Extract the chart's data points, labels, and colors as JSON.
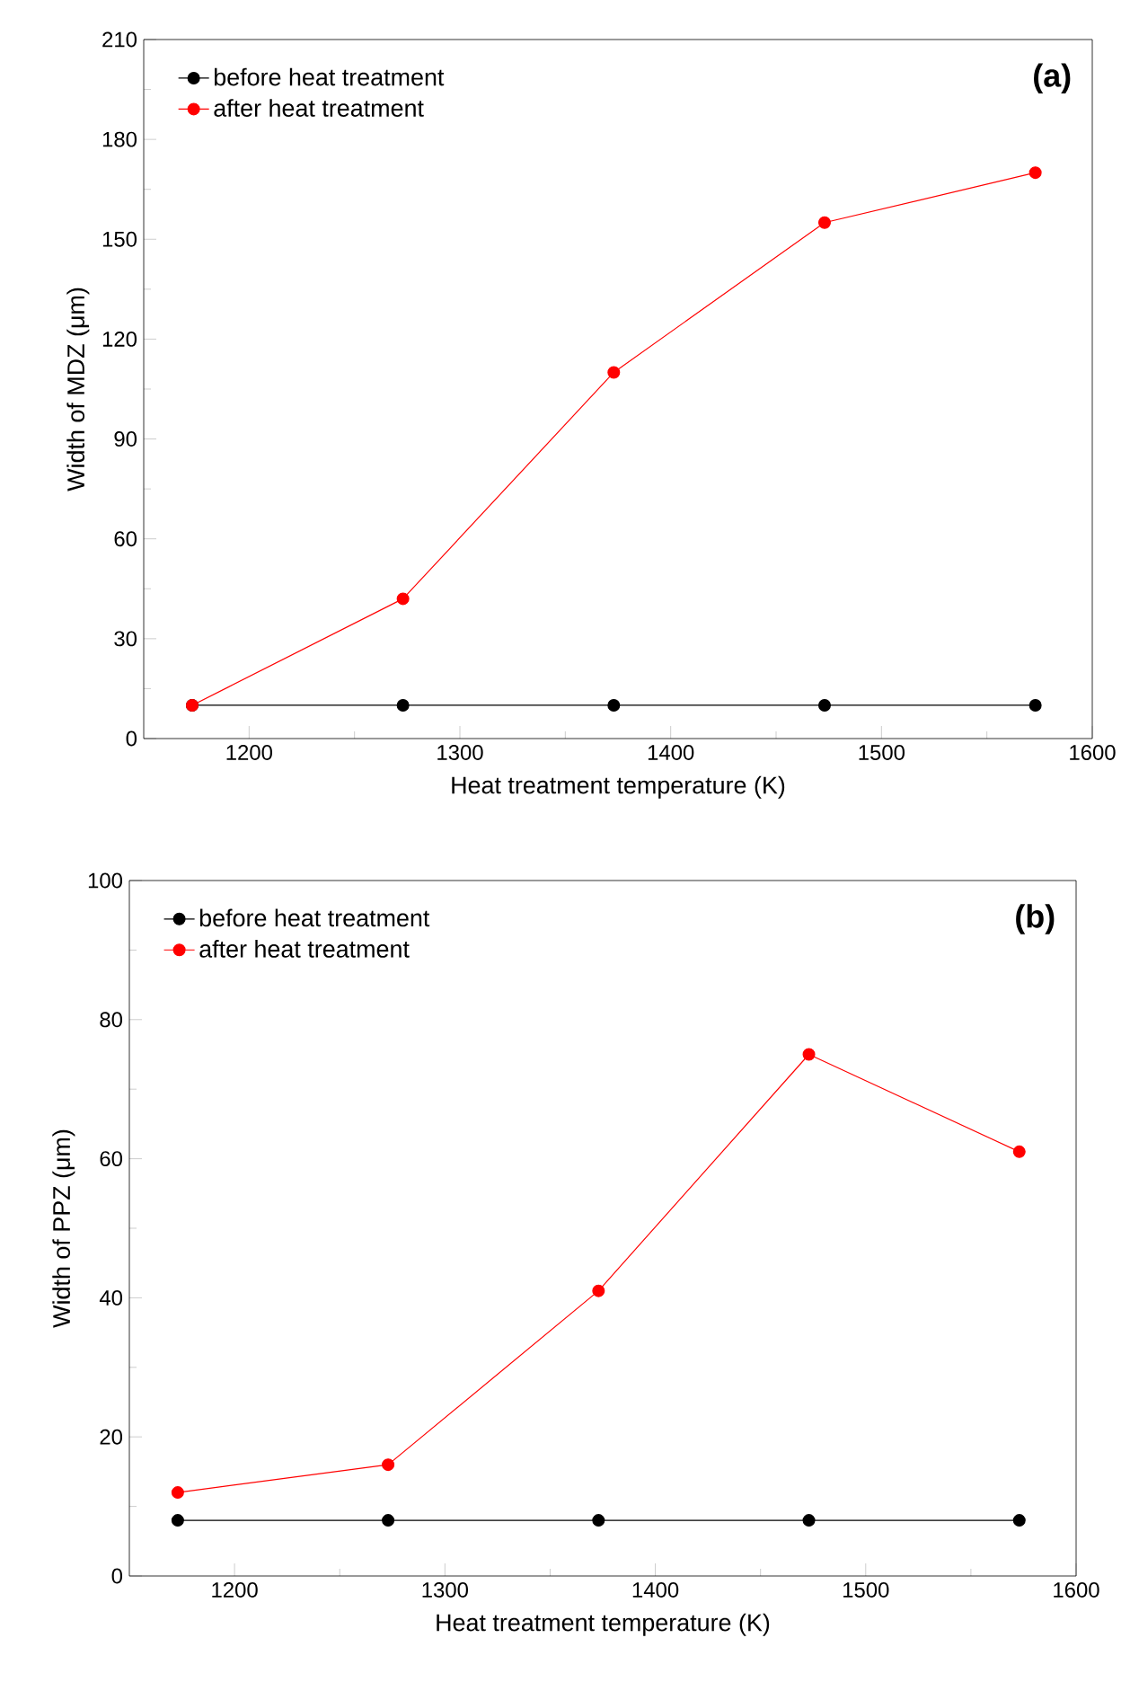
{
  "chart_data": [
    {
      "type": "line",
      "xlabel": "Heat treatment temperature (K)",
      "ylabel": "Width of MDZ (μm)",
      "x": [
        1173,
        1273,
        1373,
        1473,
        1573
      ],
      "xlim": [
        1150,
        1600
      ],
      "xticks": [
        1200,
        1300,
        1400,
        1500,
        1600
      ],
      "ylim": [
        0,
        210
      ],
      "yticks": [
        0,
        30,
        60,
        90,
        120,
        150,
        180,
        210
      ],
      "marker": "circle",
      "line_style": "solid",
      "grid": false,
      "legend": "top left",
      "annotations": [
        "(a)"
      ],
      "series": [
        {
          "name": "before heat treatment",
          "color": "#000000",
          "values": [
            10,
            10,
            10,
            10,
            10
          ]
        },
        {
          "name": "after heat treatment",
          "color": "#ff0000",
          "values": [
            10,
            42,
            110,
            155,
            170
          ]
        }
      ]
    },
    {
      "type": "line",
      "xlabel": "Heat treatment temperature (K)",
      "ylabel": "Width of PPZ (μm)",
      "x": [
        1173,
        1273,
        1373,
        1473,
        1573
      ],
      "xlim": [
        1150,
        1600
      ],
      "xticks": [
        1200,
        1300,
        1400,
        1500,
        1600
      ],
      "ylim": [
        0,
        100
      ],
      "yticks": [
        0,
        20,
        40,
        60,
        80,
        100
      ],
      "marker": "circle",
      "line_style": "solid",
      "grid": false,
      "legend": "top left",
      "annotations": [
        "(b)"
      ],
      "series": [
        {
          "name": "before heat treatment",
          "color": "#000000",
          "values": [
            8,
            8,
            8,
            8,
            8
          ]
        },
        {
          "name": "after heat treatment",
          "color": "#ff0000",
          "values": [
            12,
            16,
            41,
            75,
            61
          ]
        }
      ]
    }
  ]
}
